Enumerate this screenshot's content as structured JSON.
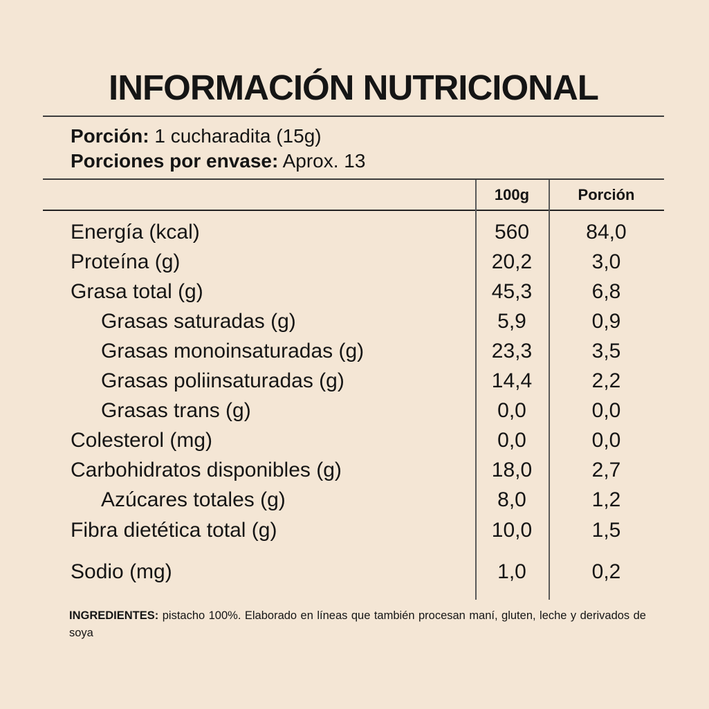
{
  "colors": {
    "background": "#f4e6d5",
    "text": "#151515",
    "rule": "#3c3c3c",
    "vline": "#5a5a5a"
  },
  "title": "INFORMACIÓN NUTRICIONAL",
  "serving": {
    "portion_label": "Porción:",
    "portion_value": " 1 cucharadita (15g)",
    "servings_label": "Porciones por envase:",
    "servings_value": " Aprox. 13"
  },
  "table": {
    "header": {
      "col_100g": "100g",
      "col_portion": "Porción"
    },
    "rows": [
      {
        "label": "Energía (kcal)",
        "indent": false,
        "per100g": "560",
        "portion": "84,0"
      },
      {
        "label": "Proteína (g)",
        "indent": false,
        "per100g": "20,2",
        "portion": "3,0"
      },
      {
        "label": "Grasa total (g)",
        "indent": false,
        "per100g": "45,3",
        "portion": "6,8"
      },
      {
        "label": "Grasas saturadas (g)",
        "indent": true,
        "per100g": "5,9",
        "portion": "0,9"
      },
      {
        "label": "Grasas monoinsaturadas (g)",
        "indent": true,
        "per100g": "23,3",
        "portion": "3,5"
      },
      {
        "label": "Grasas poliinsaturadas (g)",
        "indent": true,
        "per100g": "14,4",
        "portion": "2,2"
      },
      {
        "label": "Grasas trans (g)",
        "indent": true,
        "per100g": "0,0",
        "portion": "0,0"
      },
      {
        "label": "Colesterol (mg)",
        "indent": false,
        "per100g": "0,0",
        "portion": "0,0"
      },
      {
        "label": "Carbohidratos disponibles (g)",
        "indent": false,
        "per100g": "18,0",
        "portion": "2,7"
      },
      {
        "label": "Azúcares totales (g)",
        "indent": true,
        "per100g": "8,0",
        "portion": "1,2"
      },
      {
        "label": "Fibra dietética total (g)",
        "indent": false,
        "per100g": "10,0",
        "portion": "1,5"
      },
      {
        "label": "Sodio (mg)",
        "indent": false,
        "per100g": "1,0",
        "portion": "0,2"
      }
    ]
  },
  "ingredients": {
    "label": "INGREDIENTES:",
    "text": " pistacho 100%. Elaborado en líneas que también procesan maní, gluten, leche y derivados de soya"
  }
}
